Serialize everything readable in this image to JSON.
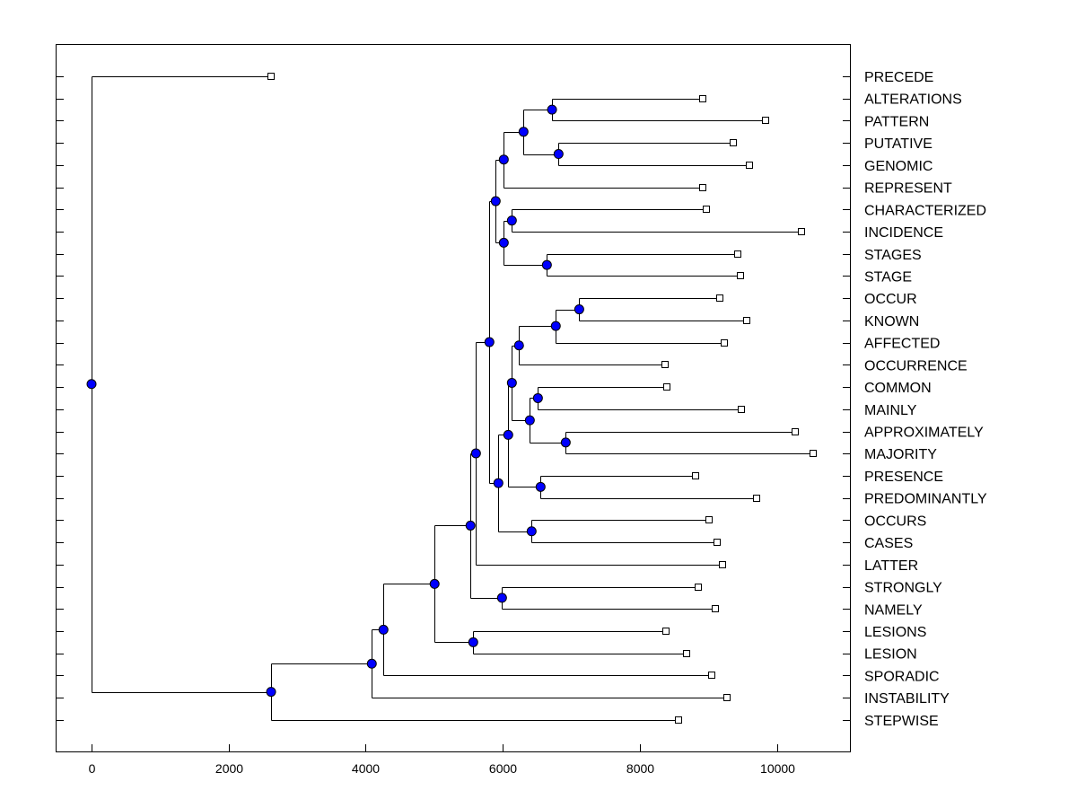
{
  "chart_data": {
    "type": "dendrogram",
    "orientation": "horizontal",
    "xlim": [
      -500,
      11000
    ],
    "xticks": [
      0,
      2000,
      4000,
      6000,
      8000,
      10000
    ],
    "grid": false,
    "colors": {
      "node": "#0000ff",
      "leaf": "#ffffff",
      "line": "#000000"
    },
    "tree": {
      "height": 0,
      "children": [
        {
          "label": "PRECEDE",
          "value": 2620
        },
        {
          "height": 2620,
          "children": [
            {
              "height": 4090,
              "children": [
                {
                  "height": 4260,
                  "children": [
                    {
                      "height": 5006,
                      "children": [
                        {
                          "height": 5530,
                          "children": [
                            {
                              "height": 5610,
                              "children": [
                                {
                                  "height": 5806,
                                  "children": [
                                    {
                                      "height": 5898,
                                      "children": [
                                        {
                                          "height": 6016,
                                          "children": [
                                            {
                                              "height": 6304,
                                              "children": [
                                                {
                                                  "height": 6720,
                                                  "children": [
                                                    {
                                                      "label": "ALTERATIONS",
                                                      "value": 8925
                                                    },
                                                    {
                                                      "label": "PATTERN",
                                                      "value": 9830
                                                    }
                                                  ]
                                                },
                                                {
                                                  "height": 6815,
                                                  "children": [
                                                    {
                                                      "label": "PUTATIVE",
                                                      "value": 9370
                                                    },
                                                    {
                                                      "label": "GENOMIC",
                                                      "value": 9607
                                                    }
                                                  ]
                                                }
                                              ]
                                            },
                                            {
                                              "label": "REPRESENT",
                                              "value": 8925
                                            }
                                          ]
                                        },
                                        {
                                          "height": 6016,
                                          "children": [
                                            {
                                              "height": 6134,
                                              "children": [
                                                {
                                                  "label": "CHARACTERIZED",
                                                  "value": 8978
                                                },
                                                {
                                                  "label": "INCIDENCE",
                                                  "value": 10354
                                                }
                                              ]
                                            },
                                            {
                                              "height": 6645,
                                              "children": [
                                                {
                                                  "label": "STAGES",
                                                  "value": 9436
                                                },
                                                {
                                                  "label": "STAGE",
                                                  "value": 9463
                                                }
                                              ]
                                            }
                                          ]
                                        }
                                      ]
                                    },
                                    {
                                      "height": 5937,
                                      "children": [
                                        {
                                          "height": 6081,
                                          "children": [
                                            {
                                              "height": 6134,
                                              "children": [
                                                {
                                                  "height": 6238,
                                                  "children": [
                                                    {
                                                      "height": 6775,
                                                      "children": [
                                                        {
                                                          "height": 7117,
                                                          "children": [
                                                            {
                                                              "label": "OCCUR",
                                                              "value": 9174
                                                            },
                                                            {
                                                              "label": "KNOWN",
                                                              "value": 9567
                                                            }
                                                          ]
                                                        },
                                                        {
                                                          "label": "AFFECTED",
                                                          "value": 9240
                                                        }
                                                      ]
                                                    },
                                                    {
                                                      "label": "OCCURRENCE",
                                                      "value": 8375
                                                    }
                                                  ]
                                                },
                                                {
                                                  "height": 6396,
                                                  "children": [
                                                    {
                                                      "height": 6514,
                                                      "children": [
                                                        {
                                                          "label": "COMMON",
                                                          "value": 8401
                                                        },
                                                        {
                                                          "label": "MAINLY",
                                                          "value": 9489
                                                        }
                                                      ]
                                                    },
                                                    {
                                                      "height": 6920,
                                                      "children": [
                                                        {
                                                          "label": "APPROXIMATELY",
                                                          "value": 10262
                                                        },
                                                        {
                                                          "label": "MAJORITY",
                                                          "value": 10537
                                                        }
                                                      ]
                                                    }
                                                  ]
                                                }
                                              ]
                                            },
                                            {
                                              "height": 6553,
                                              "children": [
                                                {
                                                  "label": "PRESENCE",
                                                  "value": 8820
                                                },
                                                {
                                                  "label": "PREDOMINANTLY",
                                                  "value": 9699
                                                }
                                              ]
                                            }
                                          ]
                                        },
                                        {
                                          "height": 6422,
                                          "children": [
                                            {
                                              "label": "OCCURS",
                                              "value": 9017
                                            },
                                            {
                                              "label": "CASES",
                                              "value": 9135
                                            }
                                          ]
                                        }
                                      ]
                                    }
                                  ]
                                },
                                {
                                  "label": "LATTER",
                                  "value": 9214
                                }
                              ]
                            },
                            {
                              "height": 5990,
                              "children": [
                                {
                                  "label": "STRONGLY",
                                  "value": 8860
                                },
                                {
                                  "label": "NAMELY",
                                  "value": 9109
                                }
                              ]
                            }
                          ]
                        },
                        {
                          "height": 5570,
                          "children": [
                            {
                              "label": "LESIONS",
                              "value": 8388
                            },
                            {
                              "label": "LESION",
                              "value": 8689
                            }
                          ]
                        }
                      ]
                    },
                    {
                      "label": "SPORADIC",
                      "value": 9056
                    }
                  ]
                },
                {
                  "label": "INSTABILITY",
                  "value": 9279
                }
              ]
            },
            {
              "label": "STEPWISE",
              "value": 8571
            }
          ]
        }
      ]
    }
  }
}
